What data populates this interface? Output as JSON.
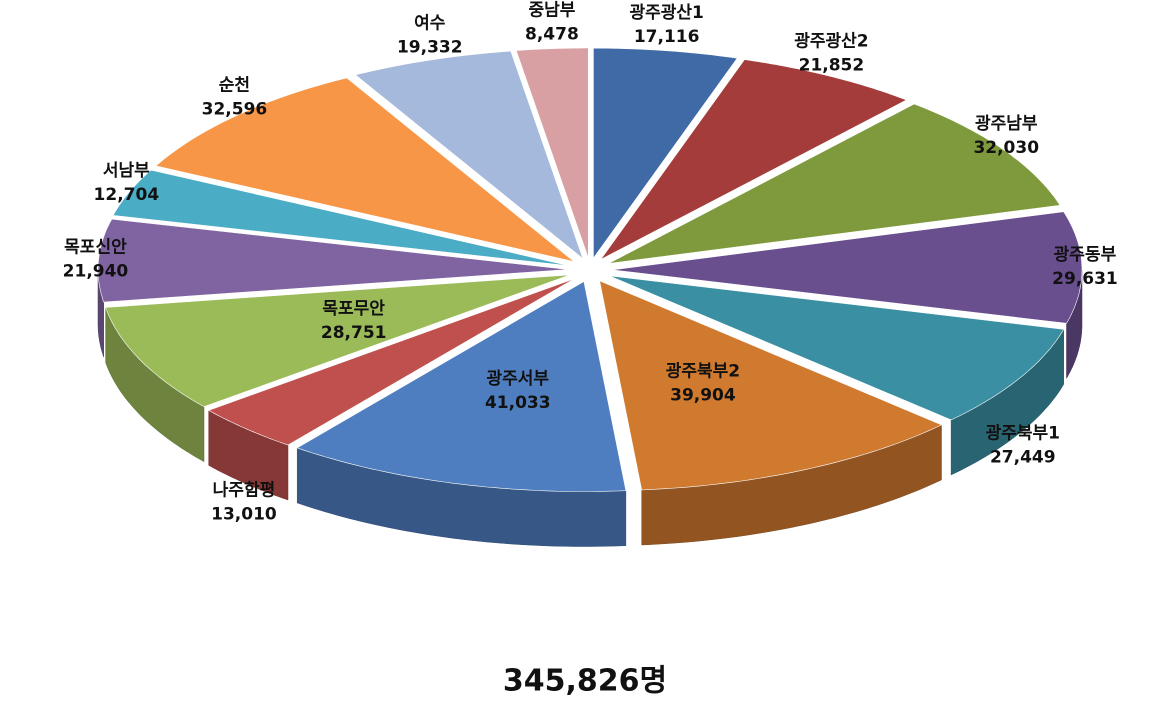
{
  "chart_data": {
    "type": "pie",
    "total_label": "345,826명",
    "categories": [
      "광주광산1",
      "광주광산2",
      "광주남부",
      "광주동부",
      "광주북부1",
      "광주북부2",
      "광주서부",
      "나주함평",
      "목포무안",
      "목포신안",
      "서남부",
      "순천",
      "여수",
      "중남부"
    ],
    "values": [
      17116,
      21852,
      32030,
      29631,
      27449,
      39904,
      41033,
      13010,
      28751,
      21940,
      12704,
      32596,
      19332,
      8478
    ],
    "value_labels": [
      "17,116",
      "21,852",
      "32,030",
      "29,631",
      "27,449",
      "39,904",
      "41,033",
      "13,010",
      "28,751",
      "21,940",
      "12,704",
      "32,596",
      "19,332",
      "8,478"
    ],
    "colors": [
      "#3f6aa6",
      "#a33c3a",
      "#7e9a3c",
      "#6a4f8f",
      "#3a8fa3",
      "#d07a30",
      "#4f7ec0",
      "#c0504d",
      "#9bbb59",
      "#8064a2",
      "#4bacc6",
      "#f79646",
      "#a5b9dc",
      "#d9a0a3"
    ]
  }
}
